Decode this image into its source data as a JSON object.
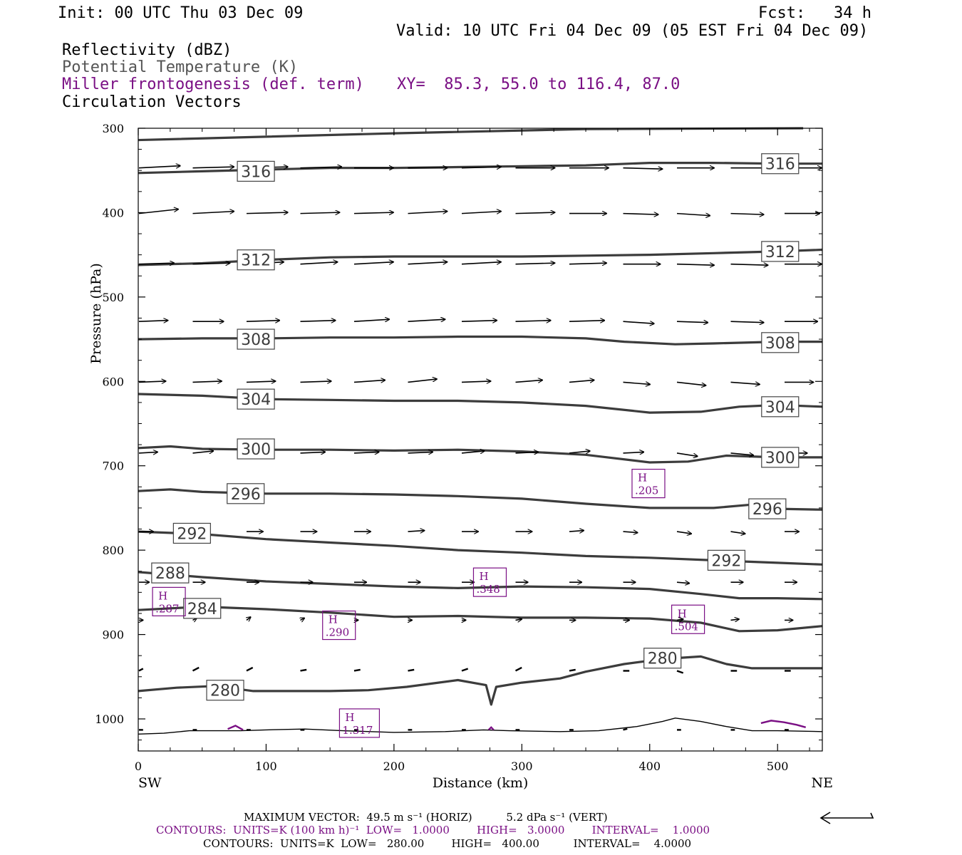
{
  "header": {
    "init": "Init: 00 UTC Thu 03 Dec 09",
    "fcst": "Fcst:   34 h",
    "valid": "Valid: 10 UTC Fri 04 Dec 09 (05 EST Fri 04 Dec 09)",
    "field1": "Reflectivity (dBZ)",
    "field2": "Potential Temperature (K)",
    "field3": "Miller frontogenesis (def. term)",
    "xy": "XY=  85.3, 55.0 to 116.4, 87.0",
    "field4": "Circulation Vectors"
  },
  "footer": {
    "max_vector": "MAXIMUM VECTOR:  49.5 m s⁻¹ (HORIZ)          5.2 dPa s⁻¹ (VERT)",
    "contours_front": "CONTOURS:  UNITS=K (100 km h)⁻¹  LOW=   1.0000        HIGH=   3.0000        INTERVAL=    1.0000",
    "contours_theta": "CONTOURS:  UNITS=K  LOW=   280.00        HIGH=   400.00          INTERVAL=    4.0000"
  },
  "chart_data": {
    "type": "line",
    "xlabel": "Distance (km)",
    "ylabel": "Pressure (hPa)",
    "xlim": [
      0,
      535
    ],
    "ylim": [
      1038,
      300
    ],
    "x_ticks": [
      0,
      100,
      200,
      300,
      400,
      500
    ],
    "y_ticks": [
      300,
      400,
      500,
      600,
      700,
      800,
      900,
      1000
    ],
    "x_end_labels": {
      "left": "SW",
      "right": "NE"
    },
    "colors": {
      "theta": "#3c3c3c",
      "frontogenesis": "#7a0f84",
      "vectors": "#000000"
    },
    "isentropes": [
      {
        "theta": 316,
        "labels": [
          [
            92,
            351
          ],
          [
            502,
            342
          ]
        ],
        "points": [
          [
            0,
            353
          ],
          [
            50,
            351
          ],
          [
            100,
            349
          ],
          [
            150,
            347
          ],
          [
            200,
            347
          ],
          [
            250,
            346
          ],
          [
            300,
            345
          ],
          [
            350,
            344
          ],
          [
            400,
            341
          ],
          [
            450,
            341
          ],
          [
            500,
            342
          ],
          [
            535,
            342
          ]
        ]
      },
      {
        "theta": 312,
        "labels": [
          [
            92,
            456
          ],
          [
            502,
            446
          ]
        ],
        "points": [
          [
            0,
            462
          ],
          [
            50,
            460
          ],
          [
            100,
            456
          ],
          [
            150,
            453
          ],
          [
            200,
            452
          ],
          [
            250,
            452
          ],
          [
            300,
            452
          ],
          [
            350,
            451
          ],
          [
            400,
            450
          ],
          [
            450,
            448
          ],
          [
            500,
            446
          ],
          [
            535,
            444
          ]
        ]
      },
      {
        "theta": 308,
        "labels": [
          [
            92,
            550
          ],
          [
            502,
            554
          ]
        ],
        "points": [
          [
            0,
            550
          ],
          [
            50,
            549
          ],
          [
            100,
            549
          ],
          [
            150,
            548
          ],
          [
            200,
            548
          ],
          [
            250,
            547
          ],
          [
            300,
            547
          ],
          [
            350,
            549
          ],
          [
            380,
            553
          ],
          [
            420,
            556
          ],
          [
            450,
            555
          ],
          [
            500,
            553
          ],
          [
            535,
            553
          ]
        ]
      },
      {
        "theta": 304,
        "labels": [
          [
            92,
            621
          ],
          [
            502,
            630
          ]
        ],
        "points": [
          [
            0,
            615
          ],
          [
            50,
            617
          ],
          [
            100,
            621
          ],
          [
            150,
            622
          ],
          [
            200,
            623
          ],
          [
            250,
            623
          ],
          [
            300,
            625
          ],
          [
            350,
            629
          ],
          [
            400,
            637
          ],
          [
            440,
            636
          ],
          [
            470,
            630
          ],
          [
            500,
            628
          ],
          [
            535,
            630
          ]
        ]
      },
      {
        "theta": 300,
        "labels": [
          [
            92,
            680
          ],
          [
            502,
            690
          ]
        ],
        "points": [
          [
            0,
            679
          ],
          [
            25,
            677
          ],
          [
            50,
            680
          ],
          [
            100,
            681
          ],
          [
            150,
            681
          ],
          [
            200,
            682
          ],
          [
            250,
            681
          ],
          [
            300,
            683
          ],
          [
            350,
            687
          ],
          [
            400,
            696
          ],
          [
            430,
            695
          ],
          [
            460,
            688
          ],
          [
            500,
            690
          ],
          [
            535,
            690
          ]
        ]
      },
      {
        "theta": 296,
        "labels": [
          [
            84,
            733
          ],
          [
            492,
            751
          ]
        ],
        "points": [
          [
            0,
            730
          ],
          [
            25,
            728
          ],
          [
            50,
            731
          ],
          [
            100,
            733
          ],
          [
            150,
            733
          ],
          [
            200,
            734
          ],
          [
            250,
            736
          ],
          [
            300,
            739
          ],
          [
            350,
            745
          ],
          [
            400,
            750
          ],
          [
            450,
            750
          ],
          [
            480,
            746
          ],
          [
            500,
            751
          ],
          [
            535,
            752
          ]
        ]
      },
      {
        "theta": 292,
        "labels": [
          [
            42,
            780
          ],
          [
            460,
            812
          ]
        ],
        "points": [
          [
            0,
            778
          ],
          [
            50,
            781
          ],
          [
            100,
            787
          ],
          [
            150,
            791
          ],
          [
            200,
            795
          ],
          [
            250,
            800
          ],
          [
            300,
            803
          ],
          [
            350,
            807
          ],
          [
            400,
            809
          ],
          [
            450,
            812
          ],
          [
            500,
            815
          ],
          [
            535,
            817
          ]
        ]
      },
      {
        "theta": 288,
        "labels": [
          [
            25,
            827
          ]
        ],
        "points": [
          [
            0,
            826
          ],
          [
            50,
            832
          ],
          [
            100,
            837
          ],
          [
            150,
            840
          ],
          [
            200,
            843
          ],
          [
            250,
            845
          ],
          [
            300,
            843
          ],
          [
            350,
            844
          ],
          [
            400,
            846
          ],
          [
            440,
            852
          ],
          [
            470,
            857
          ],
          [
            500,
            857
          ],
          [
            535,
            858
          ]
        ]
      },
      {
        "theta": 284,
        "labels": [
          [
            50,
            869
          ]
        ],
        "points": [
          [
            0,
            871
          ],
          [
            50,
            867
          ],
          [
            100,
            870
          ],
          [
            150,
            874
          ],
          [
            200,
            879
          ],
          [
            250,
            878
          ],
          [
            300,
            880
          ],
          [
            350,
            880
          ],
          [
            400,
            881
          ],
          [
            440,
            886
          ],
          [
            470,
            896
          ],
          [
            500,
            895
          ],
          [
            535,
            890
          ]
        ]
      },
      {
        "theta": 280,
        "labels": [
          [
            68,
            966
          ],
          [
            410,
            928
          ]
        ],
        "points": [
          [
            0,
            967
          ],
          [
            30,
            963
          ],
          [
            60,
            961
          ],
          [
            90,
            967
          ],
          [
            150,
            967
          ],
          [
            180,
            966
          ],
          [
            210,
            962
          ],
          [
            250,
            954
          ],
          [
            272,
            960
          ],
          [
            276,
            983
          ],
          [
            280,
            962
          ],
          [
            300,
            957
          ],
          [
            330,
            952
          ],
          [
            350,
            944
          ],
          [
            380,
            935
          ],
          [
            410,
            929
          ],
          [
            440,
            926
          ],
          [
            460,
            935
          ],
          [
            480,
            940
          ],
          [
            535,
            940
          ]
        ]
      }
    ],
    "ground": {
      "points": [
        [
          0,
          1018
        ],
        [
          20,
          1017
        ],
        [
          40,
          1014
        ],
        [
          80,
          1014
        ],
        [
          100,
          1013
        ],
        [
          130,
          1012
        ],
        [
          160,
          1014
        ],
        [
          200,
          1016
        ],
        [
          240,
          1015
        ],
        [
          270,
          1013
        ],
        [
          290,
          1014
        ],
        [
          330,
          1015
        ],
        [
          360,
          1014
        ],
        [
          390,
          1009
        ],
        [
          410,
          1003
        ],
        [
          420,
          999
        ],
        [
          440,
          1003
        ],
        [
          460,
          1009
        ],
        [
          480,
          1014
        ],
        [
          500,
          1014
        ],
        [
          535,
          1015
        ]
      ]
    },
    "frontogenesis_maxima": [
      {
        "label": "H",
        "value": ".287",
        "x": 24,
        "p": 861
      },
      {
        "label": "H",
        "value": ".290",
        "x": 157,
        "p": 889
      },
      {
        "label": "H",
        "value": ".348",
        "x": 275,
        "p": 838
      },
      {
        "label": "H",
        "value": ".205",
        "x": 399,
        "p": 721
      },
      {
        "label": "H",
        "value": ".504",
        "x": 430,
        "p": 882
      },
      {
        "label": "H",
        "value": "1.317",
        "x": 173,
        "p": 1005
      }
    ],
    "frontogenesis_contours": [
      {
        "points": [
          [
            70,
            1012
          ],
          [
            76,
            1008
          ],
          [
            82,
            1013
          ]
        ]
      },
      {
        "points": [
          [
            274,
            1013
          ],
          [
            276,
            1010
          ],
          [
            278,
            1013
          ]
        ]
      },
      {
        "points": [
          [
            487,
            1005
          ],
          [
            495,
            1002
          ],
          [
            505,
            1004
          ],
          [
            515,
            1007
          ],
          [
            522,
            1010
          ]
        ]
      }
    ],
    "vector_rows": [
      {
        "p": 347,
        "n": 13,
        "u": [
          40,
          40,
          40,
          40,
          38,
          38,
          38,
          38,
          38,
          38,
          36,
          36,
          36
        ],
        "w": [
          -2,
          -1,
          -1,
          -1,
          0,
          0,
          -1,
          0,
          0,
          1,
          0,
          0,
          0
        ]
      },
      {
        "p": 401,
        "n": 13,
        "u": [
          38,
          40,
          40,
          38,
          38,
          38,
          38,
          38,
          36,
          34,
          32,
          32,
          34
        ],
        "w": [
          -4,
          -2,
          -1,
          -1,
          -1,
          -2,
          -2,
          -1,
          0,
          1,
          2,
          1,
          0
        ]
      },
      {
        "p": 461,
        "n": 13,
        "u": [
          34,
          36,
          36,
          36,
          38,
          38,
          38,
          38,
          36,
          36,
          36,
          36,
          36
        ],
        "w": [
          -1,
          -1,
          -2,
          -2,
          -2,
          -2,
          -2,
          -1,
          -1,
          0,
          1,
          1,
          0
        ]
      },
      {
        "p": 529,
        "n": 13,
        "u": [
          28,
          30,
          32,
          34,
          34,
          36,
          34,
          34,
          34,
          30,
          30,
          32,
          32
        ],
        "w": [
          -1,
          0,
          -1,
          -1,
          -2,
          -2,
          -1,
          -1,
          -1,
          2,
          1,
          1,
          0
        ]
      },
      {
        "p": 601,
        "n": 13,
        "u": [
          26,
          28,
          28,
          30,
          30,
          28,
          28,
          26,
          24,
          26,
          28,
          28,
          28
        ],
        "w": [
          -1,
          -1,
          -1,
          -1,
          -2,
          -3,
          -1,
          -2,
          -2,
          2,
          3,
          2,
          0
        ]
      },
      {
        "p": 685,
        "n": 13,
        "u": [
          18,
          20,
          22,
          24,
          24,
          24,
          22,
          22,
          20,
          20,
          20,
          22,
          22
        ],
        "w": [
          -1,
          -2,
          -1,
          -1,
          -1,
          -1,
          -2,
          -1,
          -2,
          -1,
          3,
          2,
          0
        ]
      },
      {
        "p": 778,
        "n": 13,
        "u": [
          14,
          16,
          16,
          16,
          16,
          16,
          16,
          16,
          14,
          14,
          14,
          14,
          14
        ],
        "w": [
          0,
          0,
          0,
          0,
          0,
          -1,
          0,
          0,
          -1,
          1,
          2,
          2,
          0
        ]
      },
      {
        "p": 838,
        "n": 13,
        "u": [
          10,
          12,
          12,
          12,
          12,
          12,
          12,
          12,
          12,
          12,
          12,
          12,
          12
        ],
        "w": [
          0,
          0,
          0,
          0,
          0,
          0,
          0,
          0,
          0,
          0,
          1,
          0,
          0
        ]
      },
      {
        "p": 883,
        "n": 13,
        "u": [
          4,
          4,
          4,
          4,
          4,
          4,
          4,
          6,
          6,
          6,
          6,
          8,
          8
        ],
        "w": [
          0,
          -2,
          -3,
          -2,
          0,
          0,
          0,
          -1,
          0,
          0,
          -1,
          -1,
          0
        ]
      },
      {
        "p": 943,
        "n": 13,
        "u": [
          2,
          3,
          3,
          3,
          3,
          3,
          3,
          3,
          3,
          3,
          3,
          3,
          3
        ],
        "w": [
          -2,
          -3,
          -3,
          -1,
          -1,
          -1,
          -2,
          -3,
          -1,
          0,
          2,
          0,
          0
        ]
      },
      {
        "p": 1013,
        "n": 13,
        "u": [
          2,
          2,
          2,
          2,
          2,
          2,
          2,
          2,
          2,
          2,
          2,
          2,
          2
        ],
        "w": [
          0,
          0,
          0,
          0,
          0,
          0,
          0,
          0,
          0,
          -1,
          0,
          0,
          0
        ]
      }
    ],
    "reference_vector": {
      "direction": "left"
    }
  }
}
